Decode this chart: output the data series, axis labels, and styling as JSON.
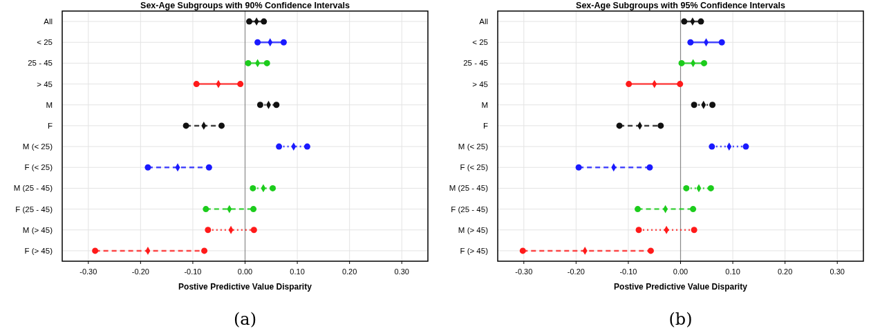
{
  "chart_data": [
    {
      "type": "scatter",
      "orientation": "horizontal",
      "title": "Sex-Age Subgroups with 90% Confidence Intervals",
      "xlabel": "Postive Predictive Value Disparity",
      "annotations": [
        "(a)"
      ],
      "categories": [
        "All",
        "< 25",
        "25 - 45",
        "> 45",
        "M",
        "F",
        "M (< 25)",
        "F (< 25)",
        "M (25 - 45)",
        "F (25 - 45)",
        "M (> 45)",
        "F (> 45)"
      ],
      "xlim": [
        -0.35,
        0.35
      ],
      "xticks": [
        {
          "value": -0.3,
          "label": "-0.30"
        },
        {
          "value": -0.2,
          "label": "-0.20"
        },
        {
          "value": -0.1,
          "label": "-0.10"
        },
        {
          "value": 0,
          "label": "0.00"
        },
        {
          "value": 0.1,
          "label": "0.10"
        },
        {
          "value": 0.2,
          "label": "0.20"
        },
        {
          "value": 0.3,
          "label": "0.30"
        }
      ],
      "grid": true,
      "marker": "diamond",
      "ref_lines": [
        {
          "axis": "x",
          "value": 0,
          "color": "#888888"
        }
      ],
      "series": [
        {
          "line_style": "solid",
          "values": [
            0.022,
            0.048,
            0.024,
            -0.051,
            null,
            null,
            null,
            null,
            null,
            null,
            null,
            null
          ],
          "colors": [
            "#111111",
            "#1a1aff",
            "#1ccc1c",
            "#ff1a1a",
            null,
            null,
            null,
            null,
            null,
            null,
            null,
            null
          ],
          "errors": [
            [
              0.008,
              0.036
            ],
            [
              0.024,
              0.074
            ],
            [
              0.006,
              0.042
            ],
            [
              -0.093,
              -0.009
            ],
            null,
            null,
            null,
            null,
            null,
            null,
            null,
            null
          ]
        },
        {
          "line_style": "dotted",
          "values": [
            null,
            null,
            null,
            null,
            0.045,
            null,
            0.093,
            null,
            0.035,
            null,
            -0.027,
            null
          ],
          "colors": [
            null,
            null,
            null,
            null,
            "#111111",
            null,
            "#1a1aff",
            null,
            "#1ccc1c",
            null,
            "#ff1a1a",
            null
          ],
          "errors": [
            null,
            null,
            null,
            null,
            [
              0.029,
              0.06
            ],
            null,
            [
              0.065,
              0.119
            ],
            null,
            [
              0.015,
              0.053
            ],
            null,
            [
              -0.071,
              0.017
            ],
            null
          ]
        },
        {
          "line_style": "dashed",
          "values": [
            null,
            null,
            null,
            null,
            null,
            -0.079,
            null,
            -0.129,
            null,
            -0.03,
            null,
            -0.186
          ],
          "colors": [
            null,
            null,
            null,
            null,
            null,
            "#111111",
            null,
            "#1a1aff",
            null,
            "#1ccc1c",
            null,
            "#ff1a1a"
          ],
          "errors": [
            null,
            null,
            null,
            null,
            null,
            [
              -0.113,
              -0.045
            ],
            null,
            [
              -0.186,
              -0.069
            ],
            null,
            [
              -0.075,
              0.016
            ],
            null,
            [
              -0.287,
              -0.078
            ]
          ]
        }
      ]
    },
    {
      "type": "scatter",
      "orientation": "horizontal",
      "title": "Sex-Age Subgroups with 95% Confidence Intervals",
      "xlabel": "Postive Predictive Value Disparity",
      "annotations": [
        "(b)"
      ],
      "categories": [
        "All",
        "< 25",
        "25 - 45",
        "> 45",
        "M",
        "F",
        "M (< 25)",
        "F (< 25)",
        "M (25 - 45)",
        "F (25 - 45)",
        "M (> 45)",
        "F (> 45)"
      ],
      "xlim": [
        -0.35,
        0.35
      ],
      "xticks": [
        {
          "value": -0.3,
          "label": "-0.30"
        },
        {
          "value": -0.2,
          "label": "-0.20"
        },
        {
          "value": -0.1,
          "label": "-0.10"
        },
        {
          "value": 0,
          "label": "0.00"
        },
        {
          "value": 0.1,
          "label": "0.10"
        },
        {
          "value": 0.2,
          "label": "0.20"
        },
        {
          "value": 0.3,
          "label": "0.30"
        }
      ],
      "grid": true,
      "marker": "diamond",
      "ref_lines": [
        {
          "axis": "x",
          "value": 0,
          "color": "#888888"
        }
      ],
      "series": [
        {
          "line_style": "solid",
          "values": [
            0.023,
            0.049,
            0.024,
            -0.05,
            null,
            null,
            null,
            null,
            null,
            null,
            null,
            null
          ],
          "colors": [
            "#111111",
            "#1a1aff",
            "#1ccc1c",
            "#ff1a1a",
            null,
            null,
            null,
            null,
            null,
            null,
            null,
            null
          ],
          "errors": [
            [
              0.007,
              0.039
            ],
            [
              0.019,
              0.079
            ],
            [
              0.002,
              0.045
            ],
            [
              -0.099,
              -0.001
            ],
            null,
            null,
            null,
            null,
            null,
            null,
            null,
            null
          ]
        },
        {
          "line_style": "dotted",
          "values": [
            null,
            null,
            null,
            null,
            0.044,
            null,
            0.093,
            null,
            0.035,
            null,
            -0.027,
            null
          ],
          "colors": [
            null,
            null,
            null,
            null,
            "#111111",
            null,
            "#1a1aff",
            null,
            "#1ccc1c",
            null,
            "#ff1a1a",
            null
          ],
          "errors": [
            null,
            null,
            null,
            null,
            [
              0.026,
              0.061
            ],
            null,
            [
              0.06,
              0.125
            ],
            null,
            [
              0.011,
              0.058
            ],
            null,
            [
              -0.08,
              0.026
            ],
            null
          ]
        },
        {
          "line_style": "dashed",
          "values": [
            null,
            null,
            null,
            null,
            null,
            -0.078,
            null,
            -0.128,
            null,
            -0.029,
            null,
            -0.183
          ],
          "colors": [
            null,
            null,
            null,
            null,
            null,
            "#111111",
            null,
            "#1a1aff",
            null,
            "#1ccc1c",
            null,
            "#ff1a1a"
          ],
          "errors": [
            null,
            null,
            null,
            null,
            null,
            [
              -0.117,
              -0.038
            ],
            null,
            [
              -0.195,
              -0.059
            ],
            null,
            [
              -0.082,
              0.024
            ],
            null,
            [
              -0.302,
              -0.057
            ]
          ]
        }
      ]
    }
  ]
}
